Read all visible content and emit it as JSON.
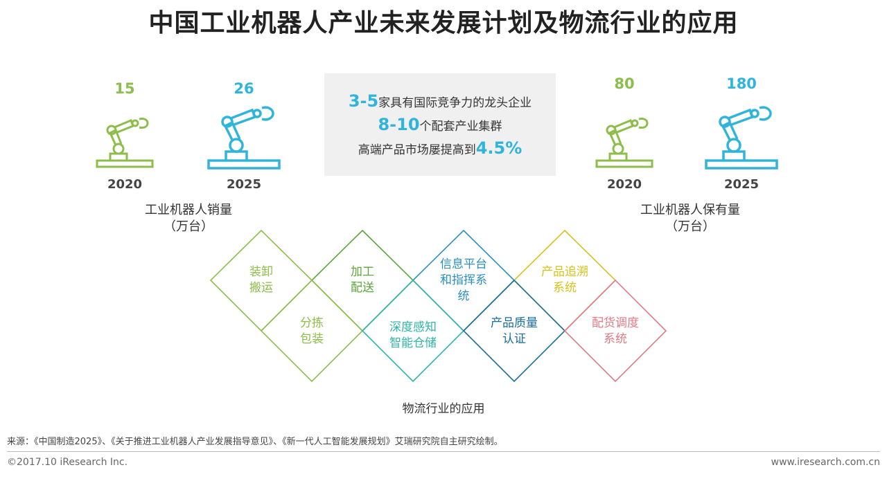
{
  "title": "中国工业机器人产业未来发展计划及物流行业的应用",
  "sales": {
    "value_2020": "15",
    "value_2025": "26",
    "year_2020": "2020",
    "year_2025": "2025",
    "caption_line1": "工业机器人销量",
    "caption_line2": "（万台）"
  },
  "holdings": {
    "value_2020": "80",
    "value_2025": "180",
    "year_2020": "2020",
    "year_2025": "2025",
    "caption_line1": "工业机器人保有量",
    "caption_line2": "（万台）"
  },
  "info": {
    "line1_highlight": "3-5",
    "line1_text": "家具有国际竞争力的龙头企业",
    "line2_highlight": "8-10",
    "line2_text": "个配套产业集群",
    "line3_text": "高端产品市场屡提高到",
    "line3_highlight": "4.5%"
  },
  "applications": {
    "top": [
      {
        "l1": "装卸",
        "l2": "搬运",
        "l3": "",
        "color": "#8dbd4a"
      },
      {
        "l1": "加工",
        "l2": "配送",
        "l3": "",
        "color": "#5aa63a"
      },
      {
        "l1": "信息平台",
        "l2": "和指挥系",
        "l3": "统",
        "color": "#2a8fc4"
      },
      {
        "l1": "产品追溯",
        "l2": "系统",
        "l3": "",
        "color": "#d6c21c"
      }
    ],
    "bottom": [
      {
        "l1": "分拣",
        "l2": "包装",
        "color": "#8dbd4a"
      },
      {
        "l1": "深度感知",
        "l2": "智能仓储",
        "color": "#2fb4a8"
      },
      {
        "l1": "产品质量",
        "l2": "认证",
        "color": "#1a6e9e"
      },
      {
        "l1": "配货调度",
        "l2": "系统",
        "color": "#e07a85"
      }
    ],
    "caption": "物流行业的应用"
  },
  "colors": {
    "green": "#8dbd4a",
    "blue": "#2fb4dc"
  },
  "footer": {
    "source": "来源：《中国制造2025》、《关于推进工业机器人产业发展指导意见》、《新一代人工智能发展规划》艾瑞研究院自主研究绘制。",
    "copyright": "©2017.10 iResearch Inc.",
    "url": "www.iresearch.com.cn"
  }
}
